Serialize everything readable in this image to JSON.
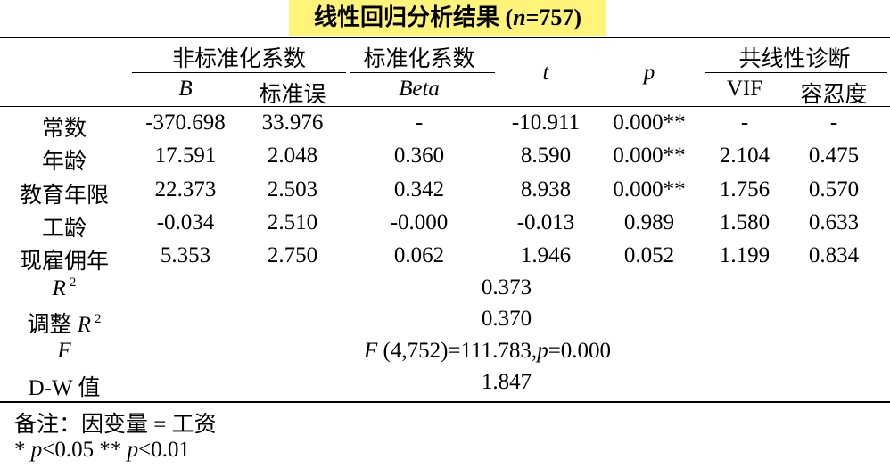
{
  "title": [
    "线性回归分析结果 (",
    "n",
    "=757)"
  ],
  "header": {
    "groups": [
      "非标准化系数",
      "标准化系数",
      "t",
      "p",
      "共线性诊断"
    ],
    "columns": [
      "B",
      "标准误",
      "Beta",
      "VIF",
      "容忍度"
    ]
  },
  "rows": [
    [
      "常数",
      "-370.698",
      "33.976",
      "-",
      "-10.911",
      "0.000**",
      "-",
      "-"
    ],
    [
      "年龄",
      "17.591",
      "2.048",
      "0.360",
      "8.590",
      "0.000**",
      "2.104",
      "0.475"
    ],
    [
      "教育年限",
      "22.373",
      "2.503",
      "0.342",
      "8.938",
      "0.000**",
      "1.756",
      "0.570"
    ],
    [
      "工龄",
      "-0.034",
      "2.510",
      "-0.000",
      "-0.013",
      "0.989",
      "1.580",
      "0.633"
    ],
    [
      "现雇佣年",
      "5.353",
      "2.750",
      "0.062",
      "1.946",
      "0.052",
      "1.199",
      "0.834"
    ]
  ],
  "summary": [
    {
      "label": [
        "R",
        "2"
      ],
      "value": [
        "0.373"
      ]
    },
    {
      "label": [
        "调整",
        "R",
        "2"
      ],
      "value": [
        "0.370"
      ]
    },
    {
      "label": [
        "F"
      ],
      "value": [
        "F",
        " (4,752)=111.783,",
        "p",
        "=0.000"
      ]
    },
    {
      "label": [
        "D-W 值"
      ],
      "value": [
        "1.847"
      ]
    }
  ],
  "notes": [
    [
      "备注：因变量 = 工资"
    ],
    [
      "* ",
      "p",
      "<0.05 ** ",
      "p",
      "<0.01"
    ]
  ]
}
